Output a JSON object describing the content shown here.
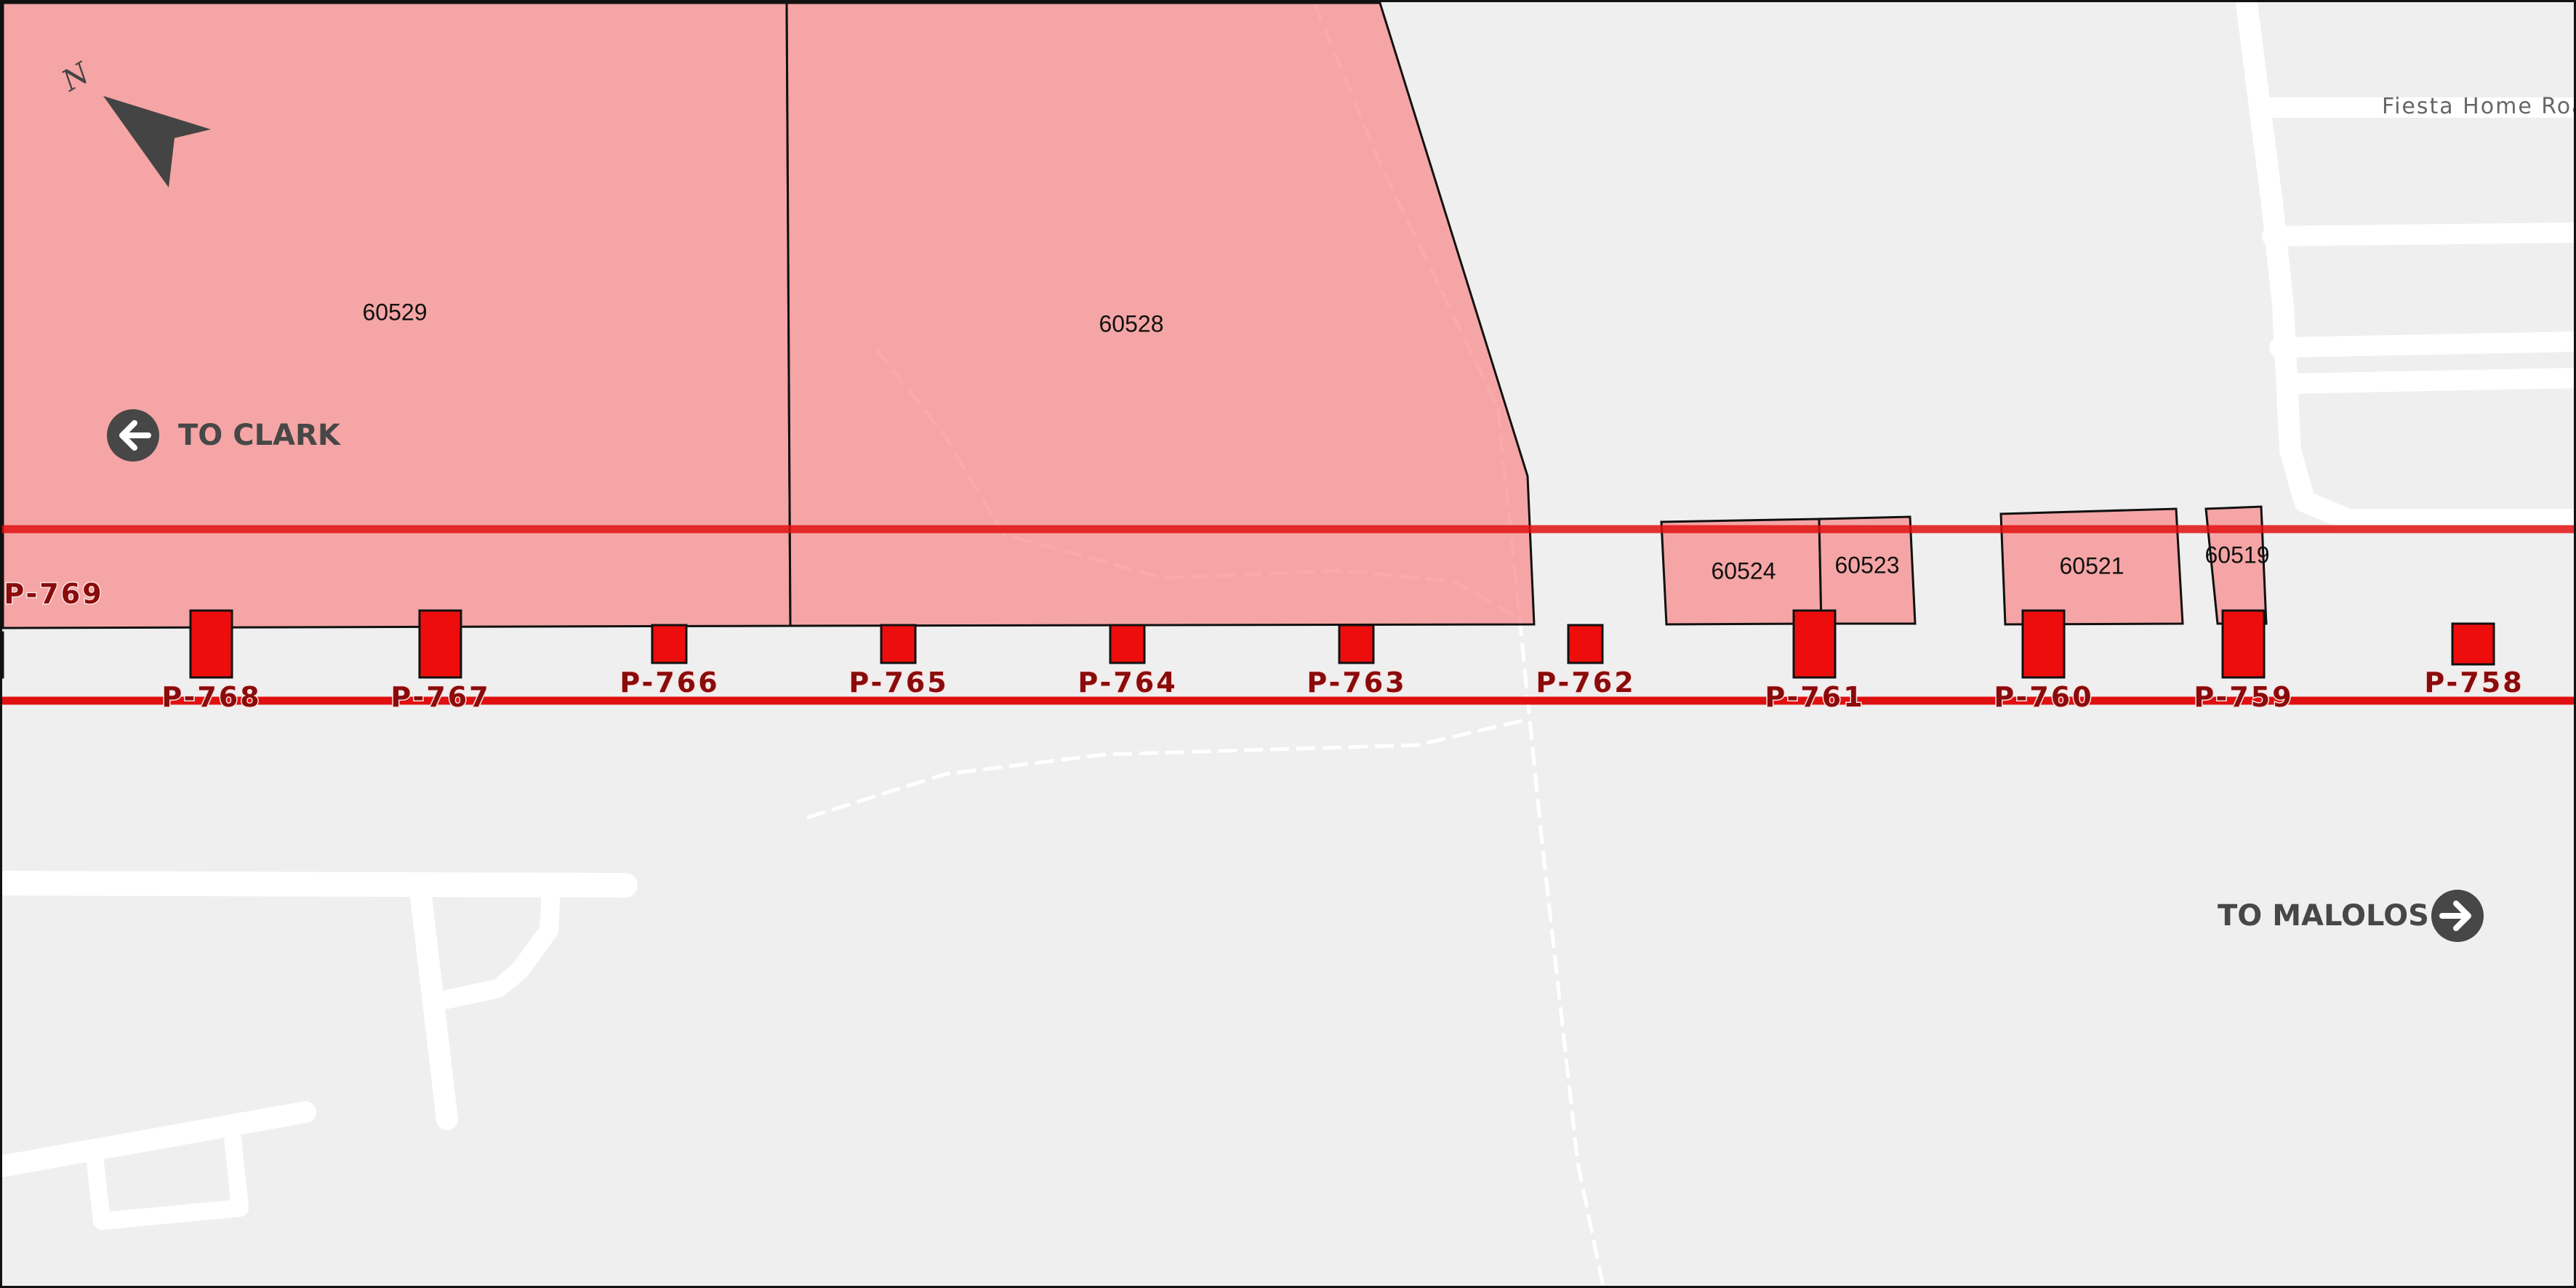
{
  "map": {
    "north_label": "N",
    "road_label": "Fiesta Home Road",
    "direction_left": {
      "label": "TO CLARK",
      "icon": "arrow-left-circle-icon"
    },
    "direction_right": {
      "label": "TO MALOLOS",
      "icon": "arrow-right-circle-icon"
    },
    "parcels": [
      {
        "id": "60529"
      },
      {
        "id": "60528"
      },
      {
        "id": "60524"
      },
      {
        "id": "60523"
      },
      {
        "id": "60521"
      },
      {
        "id": "60519"
      }
    ],
    "piers": [
      {
        "id": "P-769"
      },
      {
        "id": "P-768"
      },
      {
        "id": "P-767"
      },
      {
        "id": "P-766"
      },
      {
        "id": "P-765"
      },
      {
        "id": "P-764"
      },
      {
        "id": "P-763"
      },
      {
        "id": "P-762"
      },
      {
        "id": "P-761"
      },
      {
        "id": "P-760"
      },
      {
        "id": "P-759"
      },
      {
        "id": "P-758"
      }
    ],
    "colors": {
      "background": "#efefef",
      "parcel_fill": "#f7a3a3",
      "alignment_line": "#e01010",
      "pier_fill": "#ee0d0d",
      "pier_label": "#8a0b0b",
      "road": "#ffffff"
    }
  }
}
